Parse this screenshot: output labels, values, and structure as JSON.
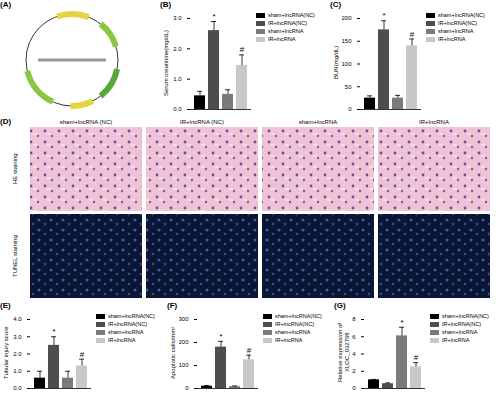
{
  "panels": {
    "A": {
      "label": "(A)"
    },
    "D": {
      "label": "(D)",
      "columns": [
        "sham+lncRNA (NC)",
        "IR+lncRNA (NC)",
        "sham+lncRNA",
        "IR+lncRNA"
      ],
      "rows": [
        "HE staining",
        "TUNEL staining"
      ]
    }
  },
  "chart_data": [
    {
      "type": "bar",
      "title": "(B)",
      "ylabel": "Serum creatinine(mg/dL)",
      "categories": [
        "sham+lncRNA(NC)",
        "IR+lncRNA(NC)",
        "sham+lncRNA",
        "IR+lncRNA"
      ],
      "values": [
        0.45,
        2.6,
        0.5,
        1.45
      ],
      "errors": [
        0.15,
        0.3,
        0.15,
        0.35
      ],
      "colors": [
        "#000000",
        "#4d4d4d",
        "#7a7a7a",
        "#c8c8c8"
      ],
      "annotations": [
        {
          "category": "IR+lncRNA(NC)",
          "text": "*"
        },
        {
          "category": "IR+lncRNA",
          "text": "#"
        }
      ],
      "ylim": [
        0,
        3
      ],
      "yticks": [
        0,
        1,
        2,
        3
      ],
      "legend": "right",
      "tick_labels": "y",
      "grid": false
    },
    {
      "type": "bar",
      "title": "(C)",
      "ylabel": "BUN(mg/dL)",
      "categories": [
        "sham+lncRNA(NC)",
        "IR+lncRNA(NC)",
        "sham+lncRNA",
        "IR+lncRNA"
      ],
      "values": [
        25,
        175,
        25,
        140
      ],
      "errors": [
        5,
        20,
        6,
        15
      ],
      "colors": [
        "#000000",
        "#4d4d4d",
        "#7a7a7a",
        "#c8c8c8"
      ],
      "annotations": [
        {
          "category": "IR+lncRNA(NC)",
          "text": "*"
        },
        {
          "category": "IR+lncRNA",
          "text": "#"
        }
      ],
      "ylim": [
        0,
        200
      ],
      "yticks": [
        0,
        50,
        100,
        150,
        200
      ],
      "legend": "right",
      "tick_labels": "y",
      "grid": false
    },
    {
      "type": "bar",
      "title": "(E)",
      "ylabel": "Tubular injury score",
      "categories": [
        "sham+lncRNA(NC)",
        "IR+lncRNA(NC)",
        "sham+lncRNA",
        "IR+lncRNA"
      ],
      "values": [
        0.6,
        2.5,
        0.6,
        1.3
      ],
      "errors": [
        0.4,
        0.5,
        0.4,
        0.4
      ],
      "colors": [
        "#000000",
        "#4d4d4d",
        "#7a7a7a",
        "#c8c8c8"
      ],
      "annotations": [
        {
          "category": "IR+lncRNA(NC)",
          "text": "*"
        },
        {
          "category": "IR+lncRNA",
          "text": "#"
        }
      ],
      "ylim": [
        0,
        4
      ],
      "yticks": [
        0,
        1,
        2,
        3,
        4
      ],
      "legend": "right",
      "tick_labels": "y",
      "grid": false
    },
    {
      "type": "bar",
      "title": "(F)",
      "ylabel": "Apoptotic cells/mm²",
      "categories": [
        "sham+lncRNA(NC)",
        "IR+lncRNA(NC)",
        "sham+lncRNA",
        "IR+lncRNA"
      ],
      "values": [
        10,
        180,
        8,
        125
      ],
      "errors": [
        3,
        25,
        3,
        20
      ],
      "colors": [
        "#000000",
        "#4d4d4d",
        "#7a7a7a",
        "#c8c8c8"
      ],
      "annotations": [
        {
          "category": "IR+lncRNA(NC)",
          "text": "*"
        },
        {
          "category": "IR+lncRNA",
          "text": "#"
        }
      ],
      "ylim": [
        0,
        300
      ],
      "yticks": [
        0,
        100,
        200,
        300
      ],
      "legend": "right",
      "tick_labels": "y",
      "grid": false
    },
    {
      "type": "bar",
      "title": "(G)",
      "ylabel": "Relative expression of XLOC_032768",
      "categories": [
        "sham+lncRNA(NC)",
        "IR+lncRNA(NC)",
        "sham+lncRNA",
        "IR+lncRNA"
      ],
      "values": [
        1,
        0.55,
        6.1,
        2.5
      ],
      "errors": [
        0.05,
        0.1,
        1.0,
        0.5
      ],
      "colors": [
        "#000000",
        "#4d4d4d",
        "#7a7a7a",
        "#c8c8c8"
      ],
      "annotations": [
        {
          "category": "sham+lncRNA",
          "text": "*"
        },
        {
          "category": "IR+lncRNA",
          "text": "#"
        }
      ],
      "ylim": [
        0,
        8
      ],
      "yticks": [
        0,
        2,
        4,
        6,
        8
      ],
      "legend": "right",
      "tick_labels": "y",
      "grid": false
    }
  ]
}
